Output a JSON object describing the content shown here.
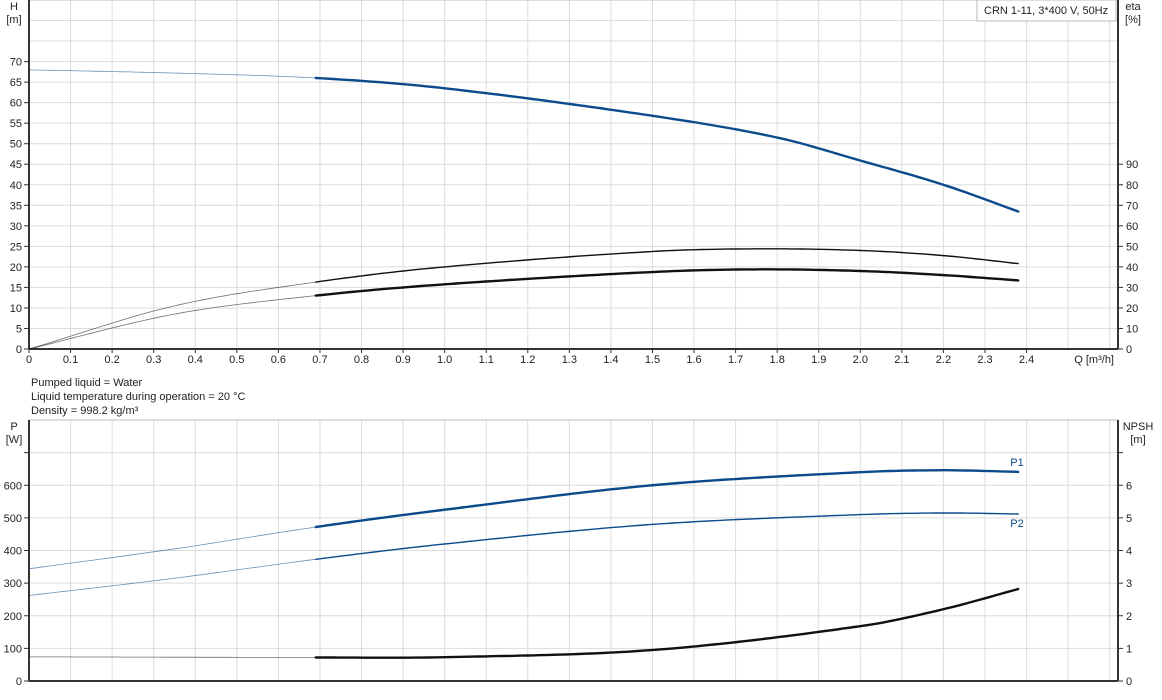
{
  "colors": {
    "blue": "#0b4a8b",
    "black": "#111111",
    "grid": "#dcdcdc"
  },
  "chart_data": [
    {
      "type": "line",
      "title": "CRN 1-11, 3*400 V, 50Hz",
      "xlabel": "Q [m³/h]",
      "ylabel_left": [
        "H",
        "[m]"
      ],
      "ylabel_right": [
        "eta",
        "[%]"
      ],
      "xlim": [
        0,
        2.62
      ],
      "ylim_left": [
        0,
        85
      ],
      "ylim_right": [
        0,
        170
      ],
      "x_ticks": [
        "0",
        "0.1",
        "0.2",
        "0.3",
        "0.4",
        "0.5",
        "0.6",
        "0.7",
        "0.8",
        "0.9",
        "1.0",
        "1.1",
        "1.2",
        "1.3",
        "1.4",
        "1.5",
        "1.6",
        "1.7",
        "1.8",
        "1.9",
        "2.0",
        "2.1",
        "2.2",
        "2.3",
        "2.4"
      ],
      "y_ticks_left": [
        0,
        5,
        10,
        15,
        20,
        25,
        30,
        35,
        40,
        45,
        50,
        55,
        60,
        65,
        70
      ],
      "y_ticks_right": [
        0,
        10,
        20,
        30,
        40,
        50,
        60,
        70,
        80,
        90
      ],
      "grid": true,
      "operating_range_start_q": 0.69,
      "series": [
        {
          "axis": "left",
          "color": "blue",
          "x": [
            0,
            0.35,
            0.69,
            1.0,
            1.5,
            1.8,
            2.0,
            2.2,
            2.38
          ],
          "y": [
            68,
            67.2,
            66,
            63.5,
            56.8,
            51.5,
            45.9,
            40,
            33.5
          ]
        },
        {
          "axis": "right",
          "color": "black",
          "thick": false,
          "x": [
            0,
            0.35,
            0.69,
            1.0,
            1.5,
            1.75,
            2.0,
            2.2,
            2.38
          ],
          "y": [
            0,
            21,
            32.6,
            40,
            47.5,
            48.8,
            48,
            45.5,
            41.6
          ]
        },
        {
          "axis": "right",
          "color": "black",
          "thick": true,
          "x": [
            0,
            0.35,
            0.69,
            1.0,
            1.5,
            1.75,
            2.0,
            2.2,
            2.38
          ],
          "y": [
            0,
            17,
            26,
            31.5,
            37.5,
            38.8,
            38,
            36,
            33.4
          ]
        }
      ]
    },
    {
      "type": "line",
      "ylabel_left": [
        "P",
        "[W]"
      ],
      "ylabel_right": [
        "NPSH",
        "[m]"
      ],
      "xlim": [
        0,
        2.62
      ],
      "ylim_left": [
        0,
        800
      ],
      "ylim_right": [
        0,
        8
      ],
      "y_ticks_left": [
        0,
        100,
        200,
        300,
        400,
        500,
        600
      ],
      "y_ticks_right": [
        0,
        1,
        2,
        3,
        4,
        5,
        6
      ],
      "grid": true,
      "operating_range_start_q": 0.69,
      "series": [
        {
          "name": "P1",
          "axis": "left",
          "color": "blue",
          "thick": true,
          "x": [
            0,
            0.35,
            0.69,
            1.0,
            1.5,
            2.0,
            2.2,
            2.38
          ],
          "y": [
            344,
            405,
            472,
            525,
            600,
            640,
            646,
            641
          ]
        },
        {
          "name": "P2",
          "axis": "left",
          "color": "blue",
          "thick": false,
          "x": [
            0,
            0.35,
            0.69,
            1.0,
            1.5,
            2.0,
            2.2,
            2.38
          ],
          "y": [
            262,
            315,
            373,
            420,
            480,
            510,
            515,
            512
          ]
        },
        {
          "axis": "right",
          "color": "black",
          "thick": true,
          "x": [
            0,
            0.35,
            0.69,
            1.0,
            1.5,
            2.0,
            2.2,
            2.38
          ],
          "y": [
            0.74,
            0.73,
            0.72,
            0.73,
            0.95,
            1.68,
            2.2,
            2.82
          ]
        }
      ]
    }
  ],
  "liquid_info": [
    "Pumped liquid = Water",
    "Liquid temperature during operation = 20 °C",
    "Density = 998.2 kg/m³"
  ]
}
